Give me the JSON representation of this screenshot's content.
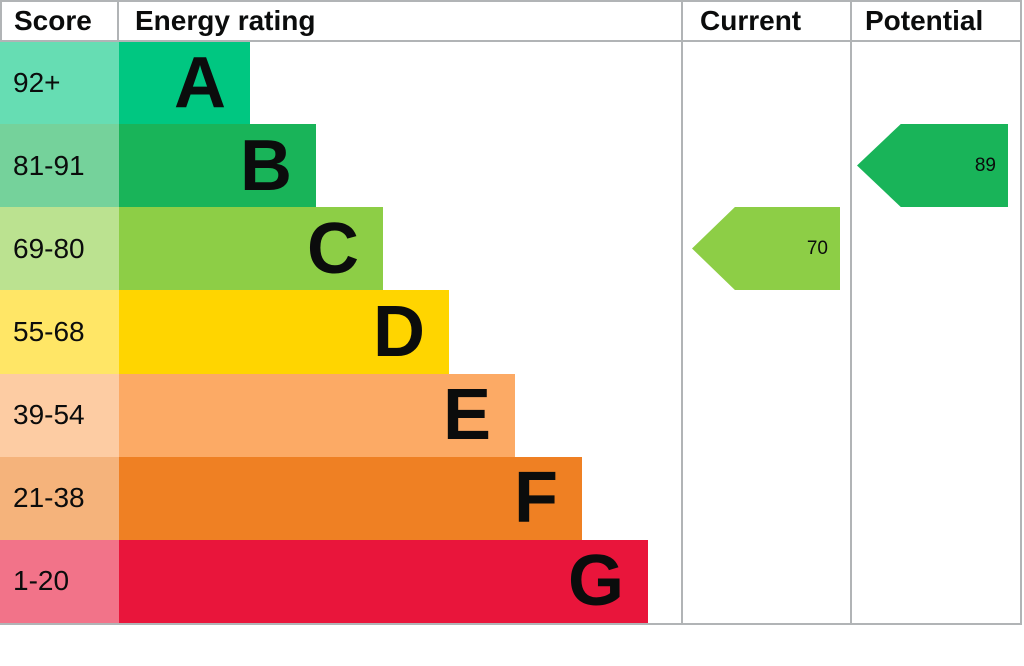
{
  "header": {
    "score": "Score",
    "energy_rating": "Energy rating",
    "current": "Current",
    "potential": "Potential"
  },
  "colors": {
    "border": "#b1b4b6",
    "text": "#0b0c0c"
  },
  "chart_data": {
    "type": "bar",
    "chart_kind": "epc-energy-efficiency-rating",
    "categories": [
      "A",
      "B",
      "C",
      "D",
      "E",
      "F",
      "G"
    ],
    "bands": [
      {
        "letter": "A",
        "score_range": "92+",
        "color": "#00c781"
      },
      {
        "letter": "B",
        "score_range": "81-91",
        "color": "#19b459"
      },
      {
        "letter": "C",
        "score_range": "69-80",
        "color": "#8dce46"
      },
      {
        "letter": "D",
        "score_range": "55-68",
        "color": "#ffd500"
      },
      {
        "letter": "E",
        "score_range": "39-54",
        "color": "#fcaa65"
      },
      {
        "letter": "F",
        "score_range": "21-38",
        "color": "#ef8023"
      },
      {
        "letter": "G",
        "score_range": "1-20",
        "color": "#e9153b"
      }
    ],
    "markers": {
      "current": {
        "value": 70,
        "band": "C",
        "color": "#8dce46"
      },
      "potential": {
        "value": 89,
        "band": "B",
        "color": "#19b459"
      }
    },
    "legend_position": "none",
    "grid": false
  }
}
